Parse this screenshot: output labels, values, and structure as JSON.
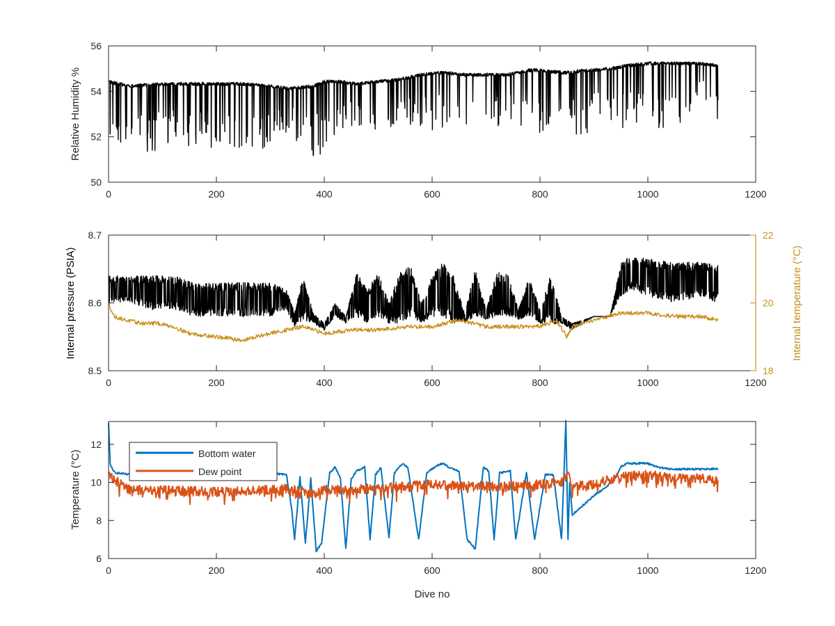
{
  "colors": {
    "axis": "#262626",
    "black_series": "#000000",
    "bottom_water": "#0072BD",
    "dew_point": "#D95319",
    "internal_temperature": "#C8901A"
  },
  "chart_data": [
    {
      "type": "line",
      "ylabel": "Relative Humidity %",
      "xlim": [
        0,
        1200
      ],
      "ylim": [
        50,
        56
      ],
      "xticks": [
        0,
        200,
        400,
        600,
        800,
        1000,
        1200
      ],
      "yticks": [
        50,
        52,
        54,
        56
      ],
      "grid": false,
      "series": [
        {
          "color": "#000000",
          "x": [
            0,
            40,
            100,
            160,
            200,
            250,
            300,
            330,
            380,
            400,
            430,
            460,
            500,
            540,
            580,
            620,
            660,
            700,
            740,
            780,
            800,
            840,
            860,
            880,
            900,
            940,
            960,
            1000,
            1040,
            1080,
            1100,
            1130
          ],
          "upper": [
            54.5,
            54.3,
            54.4,
            54.4,
            54.4,
            54.4,
            54.3,
            54.2,
            54.3,
            54.5,
            54.5,
            54.4,
            54.5,
            54.6,
            54.8,
            54.9,
            54.8,
            54.8,
            54.8,
            55.0,
            55.0,
            54.9,
            54.9,
            55.0,
            55.0,
            55.1,
            55.2,
            55.3,
            55.3,
            55.3,
            55.3,
            55.2
          ],
          "lower": [
            51.3,
            51.3,
            51.4,
            51.5,
            51.3,
            51.5,
            51.4,
            52.2,
            51.1,
            51.3,
            52.3,
            52.5,
            51.7,
            52.6,
            52.2,
            52.4,
            52.2,
            52.3,
            52.6,
            52.0,
            51.9,
            52.4,
            52.3,
            51.8,
            52.5,
            52.5,
            52.1,
            52.3,
            52.4,
            52.3,
            53.5,
            52.3
          ]
        }
      ]
    },
    {
      "type": "line",
      "ylabel": "Internal pressure (PSIA)",
      "y2label": "Internal temperature (°C)",
      "xlim": [
        0,
        1200
      ],
      "ylim": [
        8.5,
        8.7
      ],
      "y2lim": [
        18,
        22
      ],
      "xticks": [
        0,
        200,
        400,
        600,
        800,
        1000,
        1200
      ],
      "yticks": [
        8.5,
        8.6,
        8.7
      ],
      "y2ticks": [
        18,
        20,
        22
      ],
      "yticklabels": [
        "8.5",
        "8.6",
        "8.7"
      ],
      "grid": false,
      "series": [
        {
          "color": "#000000",
          "x": [
            0,
            40,
            80,
            120,
            160,
            200,
            250,
            300,
            330,
            345,
            360,
            380,
            400,
            420,
            440,
            460,
            480,
            500,
            520,
            540,
            560,
            580,
            600,
            620,
            640,
            660,
            680,
            700,
            720,
            740,
            760,
            780,
            800,
            820,
            840,
            860,
            880,
            900,
            930,
            950,
            970,
            1000,
            1050,
            1100,
            1130
          ],
          "upper": [
            8.64,
            8.64,
            8.64,
            8.64,
            8.63,
            8.63,
            8.63,
            8.63,
            8.62,
            8.585,
            8.64,
            8.585,
            8.57,
            8.6,
            8.58,
            8.645,
            8.62,
            8.645,
            8.6,
            8.645,
            8.655,
            8.6,
            8.64,
            8.66,
            8.64,
            8.585,
            8.65,
            8.59,
            8.645,
            8.645,
            8.59,
            8.64,
            8.59,
            8.645,
            8.58,
            8.57,
            8.575,
            8.58,
            8.58,
            8.66,
            8.67,
            8.665,
            8.66,
            8.66,
            8.655
          ],
          "lower": [
            8.6,
            8.6,
            8.59,
            8.59,
            8.58,
            8.58,
            8.58,
            8.58,
            8.59,
            8.565,
            8.575,
            8.57,
            8.56,
            8.58,
            8.57,
            8.58,
            8.57,
            8.58,
            8.57,
            8.57,
            8.58,
            8.57,
            8.58,
            8.58,
            8.57,
            8.57,
            8.58,
            8.575,
            8.58,
            8.58,
            8.575,
            8.58,
            8.57,
            8.565,
            8.57,
            8.56,
            8.57,
            8.58,
            8.58,
            8.61,
            8.62,
            8.61,
            8.6,
            8.61,
            8.6
          ]
        },
        {
          "axis": "right",
          "color": "#C8901A",
          "x": [
            0,
            10,
            30,
            60,
            90,
            120,
            150,
            200,
            250,
            300,
            330,
            360,
            400,
            450,
            500,
            550,
            600,
            650,
            700,
            750,
            800,
            830,
            850,
            860,
            880,
            900,
            950,
            1000,
            1050,
            1100,
            1130
          ],
          "values": [
            20.0,
            19.6,
            19.5,
            19.4,
            19.4,
            19.3,
            19.1,
            19.0,
            18.9,
            19.1,
            19.2,
            19.3,
            19.1,
            19.2,
            19.2,
            19.3,
            19.3,
            19.5,
            19.3,
            19.3,
            19.3,
            19.5,
            19.0,
            19.3,
            19.4,
            19.5,
            19.7,
            19.7,
            19.6,
            19.6,
            19.5
          ]
        }
      ]
    },
    {
      "type": "line",
      "xlabel": "Dive no",
      "ylabel": "Temperature (°C)",
      "xlim": [
        0,
        1200
      ],
      "ylim": [
        6,
        13.2
      ],
      "xticks": [
        0,
        200,
        400,
        600,
        800,
        1000,
        1200
      ],
      "yticks": [
        6,
        8,
        10,
        12
      ],
      "legend": "top-left",
      "grid": false,
      "series": [
        {
          "name": "Bottom water",
          "color": "#0072BD",
          "x": [
            0,
            3,
            8,
            15,
            40,
            80,
            120,
            180,
            240,
            300,
            330,
            340,
            345,
            355,
            365,
            375,
            385,
            395,
            410,
            420,
            430,
            440,
            450,
            460,
            475,
            485,
            495,
            505,
            520,
            530,
            545,
            555,
            575,
            590,
            610,
            620,
            630,
            650,
            665,
            680,
            695,
            705,
            715,
            725,
            745,
            755,
            775,
            790,
            810,
            825,
            840,
            848,
            852,
            855,
            860,
            880,
            900,
            920,
            940,
            950,
            960,
            980,
            1000,
            1020,
            1040,
            1060,
            1080,
            1100,
            1130
          ],
          "values": [
            13.1,
            11.0,
            10.6,
            10.5,
            10.4,
            10.4,
            10.5,
            10.4,
            10.4,
            10.5,
            10.4,
            8.5,
            7.0,
            10.3,
            6.8,
            10.2,
            6.4,
            6.8,
            10.5,
            10.8,
            10.2,
            6.5,
            10.2,
            10.6,
            10.8,
            7.0,
            10.4,
            10.8,
            7.1,
            10.5,
            11.0,
            10.8,
            7.0,
            10.5,
            10.9,
            11.0,
            10.8,
            10.6,
            7.0,
            6.5,
            10.8,
            10.6,
            7.0,
            10.5,
            10.6,
            7.0,
            10.5,
            7.0,
            10.4,
            10.4,
            7.0,
            13.2,
            7.0,
            10.0,
            8.3,
            8.8,
            9.3,
            9.7,
            10.2,
            10.8,
            11.0,
            11.0,
            11.0,
            10.8,
            10.7,
            10.7,
            10.7,
            10.7,
            10.7
          ]
        },
        {
          "name": "Dew point",
          "color": "#D95319",
          "x": [
            0,
            40,
            100,
            200,
            300,
            340,
            380,
            400,
            450,
            500,
            550,
            600,
            650,
            700,
            750,
            800,
            840,
            850,
            860,
            900,
            950,
            1000,
            1050,
            1100,
            1130
          ],
          "values": [
            10.4,
            9.6,
            9.6,
            9.5,
            9.6,
            9.7,
            9.4,
            9.6,
            9.6,
            9.7,
            9.8,
            9.9,
            9.8,
            9.8,
            9.8,
            9.9,
            10.0,
            10.5,
            9.8,
            9.9,
            10.3,
            10.4,
            10.2,
            10.2,
            10.1
          ]
        }
      ]
    }
  ]
}
